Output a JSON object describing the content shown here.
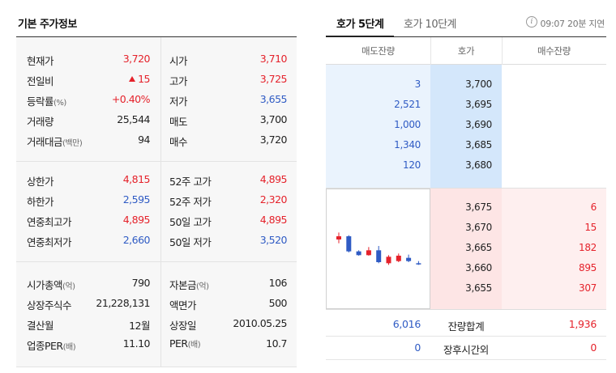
{
  "left": {
    "title": "기본 주가정보",
    "block1": [
      {
        "l1": "현재가",
        "v1": "3,720",
        "c1": "up",
        "l2": "시가",
        "v2": "3,710",
        "c2": "up"
      },
      {
        "l1": "전일비",
        "v1": "15",
        "c1": "up",
        "l2": "고가",
        "v2": "3,725",
        "c2": "up"
      },
      {
        "l1": "등락률",
        "u1": "(%)",
        "v1": "+0.40%",
        "c1": "up",
        "l2": "저가",
        "v2": "3,655",
        "c2": "down"
      },
      {
        "l1": "거래량",
        "v1": "25,544",
        "c1": "neutral",
        "l2": "매도",
        "v2": "3,700",
        "c2": "neutral"
      },
      {
        "l1": "거래대금",
        "u1": "(백만)",
        "v1": "94",
        "c1": "neutral",
        "l2": "매수",
        "v2": "3,720",
        "c2": "neutral"
      }
    ],
    "block2": [
      {
        "l1": "상한가",
        "v1": "4,815",
        "c1": "up",
        "l2": "52주 고가",
        "v2": "4,895",
        "c2": "up"
      },
      {
        "l1": "하한가",
        "v1": "2,595",
        "c1": "down",
        "l2": "52주 저가",
        "v2": "2,320",
        "c2": "up"
      },
      {
        "l1": "연중최고가",
        "v1": "4,895",
        "c1": "up",
        "l2": "50일 고가",
        "v2": "4,895",
        "c2": "up"
      },
      {
        "l1": "연중최저가",
        "v1": "2,660",
        "c1": "down",
        "l2": "50일 저가",
        "v2": "3,520",
        "c2": "down"
      }
    ],
    "block3": [
      {
        "l1": "시가총액",
        "u1": "(억)",
        "v1": "790",
        "c1": "neutral",
        "l2": "자본금",
        "u2": "(억)",
        "v2": "106",
        "c2": "neutral"
      },
      {
        "l1": "상장주식수",
        "v1": "21,228,131",
        "c1": "neutral",
        "l2": "액면가",
        "v2": "500",
        "c2": "neutral"
      },
      {
        "l1": "결산월",
        "v1": "12월",
        "c1": "neutral",
        "l2": "상장일",
        "v2": "2010.05.25",
        "c2": "neutral"
      },
      {
        "l1": "업종PER",
        "u1": "(배)",
        "v1": "11.10",
        "c1": "neutral",
        "l2": "PER",
        "u2": "(배)",
        "v2": "10.7",
        "c2": "neutral"
      }
    ]
  },
  "right": {
    "tab_active": "호가 5단계",
    "tab_inactive": "호가 10단계",
    "info_icon": "i",
    "delay_text": "09:07 20분 지연",
    "headers": {
      "sell": "매도잔량",
      "price": "호가",
      "buy": "매수잔량"
    },
    "asks": [
      {
        "qty": "3",
        "price": "3,700"
      },
      {
        "qty": "2,521",
        "price": "3,695"
      },
      {
        "qty": "1,000",
        "price": "3,690"
      },
      {
        "qty": "1,340",
        "price": "3,685"
      },
      {
        "qty": "120",
        "price": "3,680"
      }
    ],
    "bids": [
      {
        "price": "3,675",
        "qty": "6"
      },
      {
        "price": "3,670",
        "qty": "15"
      },
      {
        "price": "3,665",
        "qty": "182"
      },
      {
        "price": "3,660",
        "qty": "895"
      },
      {
        "price": "3,655",
        "qty": "307"
      }
    ],
    "summary": [
      {
        "ask": "6,016",
        "label": "잔량합계",
        "bid": "1,936"
      },
      {
        "ask": "0",
        "label": "장후시간외",
        "bid": "0"
      }
    ],
    "mini_chart": {
      "colors": {
        "up": "#e5222b",
        "down": "#2f5bc4"
      },
      "candles": [
        {
          "dir": "up",
          "o": 3712,
          "c": 3718,
          "h": 3725,
          "l": 3705
        },
        {
          "dir": "down",
          "o": 3718,
          "c": 3690,
          "h": 3720,
          "l": 3688
        },
        {
          "dir": "down",
          "o": 3690,
          "c": 3683,
          "h": 3692,
          "l": 3682
        },
        {
          "dir": "up",
          "o": 3683,
          "c": 3692,
          "h": 3698,
          "l": 3682
        },
        {
          "dir": "down",
          "o": 3692,
          "c": 3670,
          "h": 3700,
          "l": 3668
        },
        {
          "dir": "up",
          "o": 3668,
          "c": 3680,
          "h": 3683,
          "l": 3665
        },
        {
          "dir": "up",
          "o": 3672,
          "c": 3682,
          "h": 3686,
          "l": 3670
        },
        {
          "dir": "down",
          "o": 3678,
          "c": 3672,
          "h": 3684,
          "l": 3670
        },
        {
          "dir": "down",
          "o": 3668,
          "c": 3667,
          "h": 3672,
          "l": 3665
        }
      ]
    }
  }
}
